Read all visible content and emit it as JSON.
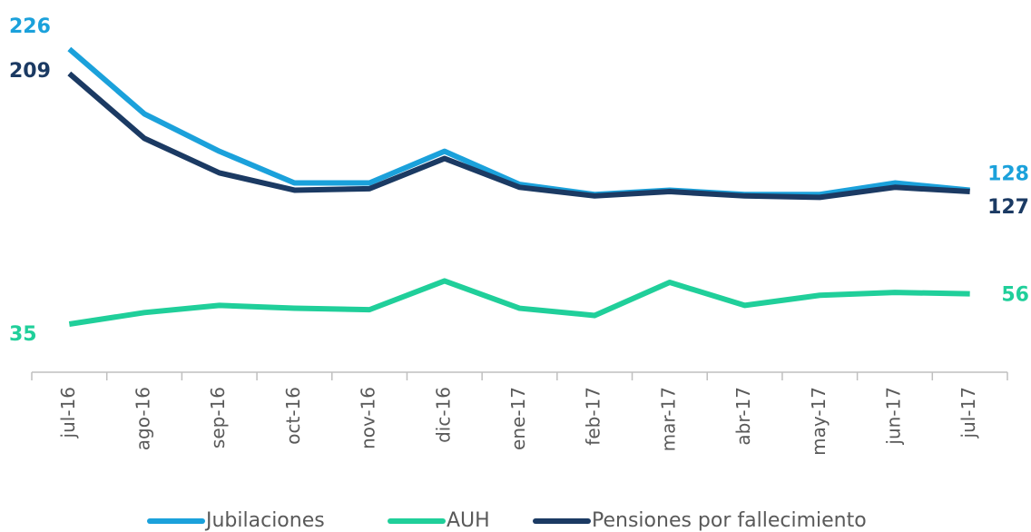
{
  "chart_data": {
    "type": "line",
    "categories": [
      "jul-16",
      "ago-16",
      "sep-16",
      "oct-16",
      "nov-16",
      "dic-16",
      "ene-17",
      "feb-17",
      "mar-17",
      "abr-17",
      "may-17",
      "jun-17",
      "jul-17"
    ],
    "series": [
      {
        "name": "Jubilaciones",
        "color": "#1ba1db",
        "values": [
          226,
          181,
          155,
          133,
          133,
          155,
          132,
          125,
          128,
          125,
          125,
          133,
          128
        ]
      },
      {
        "name": "AUH",
        "color": "#20cf9a",
        "values": [
          35,
          43,
          48,
          46,
          45,
          65,
          46,
          41,
          64,
          48,
          55,
          57,
          56
        ]
      },
      {
        "name": "Pensiones por fallecimiento",
        "color": "#1b3a63",
        "values": [
          209,
          164,
          140,
          128,
          129,
          150,
          130,
          124,
          127,
          124,
          123,
          130,
          127
        ]
      }
    ],
    "legend": "bottom"
  }
}
